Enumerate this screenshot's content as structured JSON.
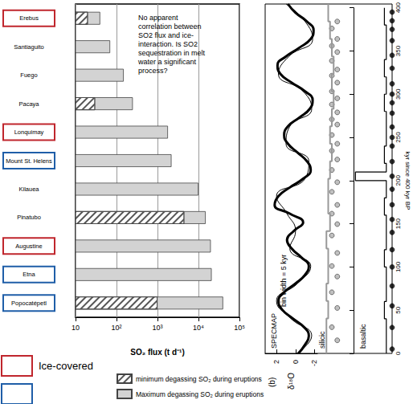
{
  "chart_data": [
    {
      "type": "bar",
      "orientation": "horizontal",
      "log": "x",
      "grid": true,
      "legend": "bottom",
      "xlabel": "SO₂ flux (t d⁻¹)",
      "xlim": [
        10,
        100000
      ],
      "xticks": [
        10,
        {
          "value": 100,
          "label": "10²"
        },
        {
          "value": 1000,
          "label": "10³"
        },
        {
          "value": 10000,
          "label": "10⁴"
        },
        {
          "value": 100000,
          "label": "10⁵"
        }
      ],
      "annotation": "No apparent\ncorrelation between\nSO2 flux and ice-\ninteraction. Is SO2\nsequestration in melt\nwater a significant\nprocess?",
      "categories": [
        "Erebus",
        "Santiaguito",
        "Fuego",
        "Pacaya",
        "Lonquimay",
        "Mount St. Helens",
        "Kilauea",
        "Pinatubo",
        "Augustine",
        "Etna",
        "Popocatépetl"
      ],
      "series": [
        {
          "name": "minimum degassing SO₂ during eruptions",
          "color": "#ffffff",
          "line_style": "hatched",
          "values": [
            20,
            null,
            null,
            30,
            null,
            null,
            null,
            4500,
            null,
            null,
            1000
          ]
        },
        {
          "name": "Maximum degassing SO₂ during eruptions",
          "color": "#d3d3d3",
          "values": [
            40,
            70,
            150,
            250,
            1800,
            2200,
            10000,
            15000,
            20000,
            21000,
            40000
          ]
        }
      ]
    },
    {
      "type": "line",
      "title": "(b)",
      "ylabel": "kyr since 400 kyr BP",
      "ylim": [
        0,
        400
      ],
      "yticks": [
        0,
        50,
        100,
        150,
        200,
        250,
        300,
        350,
        400
      ],
      "panels": [
        {
          "label": "SPECMAP",
          "annotation": "bin width = 5 kyr",
          "xlabel": "δ¹⁸O",
          "xlim": [
            3.2,
            -2.3
          ],
          "xticks": [
            2,
            0,
            -2
          ],
          "series": [
            {
              "type": "line",
              "color": "#000000",
              "line_style": "thick",
              "y": [
                0,
                10,
                20,
                30,
                40,
                50,
                60,
                70,
                80,
                90,
                100,
                110,
                120,
                130,
                140,
                150,
                160,
                170,
                180,
                190,
                200,
                210,
                220,
                230,
                240,
                250,
                260,
                270,
                280,
                290,
                300,
                310,
                320,
                330,
                340,
                350,
                360,
                370,
                380,
                390,
                400
              ],
              "values": [
                -0.3,
                -1.0,
                -1.4,
                -0.9,
                0.3,
                1.4,
                1.8,
                1.2,
                0.0,
                -1.0,
                -1.4,
                -0.6,
                0.4,
                0.9,
                0.2,
                -0.8,
                0.6,
                2.2,
                1.8,
                0.6,
                -0.8,
                -1.6,
                -1.2,
                -0.2,
                0.8,
                1.2,
                0.8,
                -0.4,
                -1.5,
                -1.8,
                -1.0,
                0.4,
                1.6,
                1.9,
                1.0,
                -0.4,
                -1.6,
                -1.9,
                -1.2,
                0.0,
                0.8
              ]
            },
            {
              "type": "line",
              "color": "#000000",
              "line_style": "thin",
              "y": [
                0,
                20,
                40,
                60,
                80,
                100,
                120,
                140,
                160,
                180,
                200,
                220,
                240,
                260,
                280,
                300,
                320,
                340,
                360,
                380,
                400
              ],
              "values": [
                -0.1,
                -1.7,
                0.5,
                2.0,
                -0.2,
                -1.6,
                0.6,
                0.0,
                0.9,
                2.0,
                -1.0,
                -1.4,
                1.0,
                0.6,
                -1.7,
                -0.8,
                1.8,
                0.7,
                -1.8,
                -1.0,
                1.0
              ]
            }
          ]
        },
        {
          "label": "silicic",
          "tick_labels": false,
          "xlim": [
            0,
            10
          ],
          "series": [
            {
              "type": "line",
              "color": "#999999",
              "line_style": "step",
              "bins": [
                0,
                20,
                40,
                60,
                80,
                100,
                120,
                140,
                160,
                180,
                200,
                220,
                240,
                260,
                280,
                300,
                320,
                340,
                360,
                380,
                400
              ],
              "values": [
                2.5,
                2.5,
                3,
                2.5,
                3,
                3,
                2.5,
                3.5,
                3,
                3,
                3.5,
                4,
                3.5,
                4,
                4.5,
                4,
                4.5,
                4,
                3.5,
                3
              ]
            },
            {
              "type": "scatter",
              "color": "#b0b0b0",
              "marker": "circle",
              "y": [
                15,
                30,
                52,
                70,
                88,
                100,
                115,
                135,
                148,
                160,
                170,
                185,
                196,
                210,
                222,
                232,
                240,
                250,
                262,
                268,
                276,
                285,
                292,
                300,
                310,
                318,
                325,
                335,
                345,
                352,
                360,
                372,
                380
              ],
              "x": [
                5.5,
                4,
                5.5,
                4,
                5.5,
                4,
                5.5,
                4,
                5.5,
                4,
                5.5,
                4,
                5.5,
                4,
                5.5,
                4,
                5.5,
                4,
                5.5,
                4,
                5.5,
                4,
                5.5,
                4,
                5.5,
                4,
                5.5,
                4,
                5.5,
                4,
                5.5,
                4,
                5.5
              ]
            }
          ]
        },
        {
          "label": "basaltic",
          "tick_labels": false,
          "xlim": [
            0,
            10
          ],
          "series": [
            {
              "type": "line",
              "color": "#000000",
              "line_style": "step",
              "bins": [
                0,
                20,
                40,
                60,
                80,
                100,
                120,
                140,
                160,
                180,
                200,
                210,
                220,
                240,
                260,
                280,
                300,
                320,
                340,
                360,
                380,
                400
              ],
              "values": [
                8.5,
                8.5,
                8,
                8.5,
                8.5,
                8,
                8.5,
                8.5,
                8,
                8.5,
                0.5,
                8.5,
                8,
                8.5,
                8.5,
                8,
                8.5,
                8,
                8.5,
                8.5,
                8
              ]
            },
            {
              "type": "scatter",
              "color": "#000000",
              "marker": "circle",
              "y": [
                5,
                30,
                55,
                78,
                100,
                120,
                140,
                155,
                172,
                190,
                205,
                222,
                240,
                250,
                262,
                278,
                290,
                300,
                312,
                330,
                345,
                362,
                375,
                385,
                395
              ],
              "x": [
                10,
                10,
                10,
                10,
                10,
                10,
                10,
                10,
                10,
                10,
                10,
                10,
                10,
                10,
                10,
                10,
                10,
                10,
                10,
                10,
                10,
                10,
                10,
                10,
                10
              ]
            }
          ]
        }
      ]
    }
  ],
  "key": [
    {
      "label": "Ice-covered",
      "color": "#c0262d",
      "categories": [
        "Erebus",
        "Lonquimay",
        "Augustine"
      ]
    },
    {
      "label": null,
      "color": "#1f5ea8",
      "categories": [
        "Mount St. Helens",
        "Etna",
        "Popocatépetl"
      ]
    }
  ]
}
